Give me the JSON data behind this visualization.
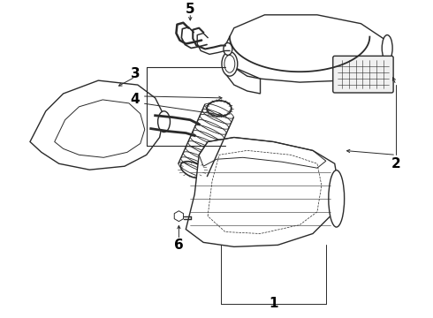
{
  "background_color": "#ffffff",
  "line_color": "#2a2a2a",
  "label_color": "#000000",
  "figsize": [
    4.9,
    3.6
  ],
  "dpi": 100,
  "label_fontsize": 11,
  "label_fontweight": "bold"
}
